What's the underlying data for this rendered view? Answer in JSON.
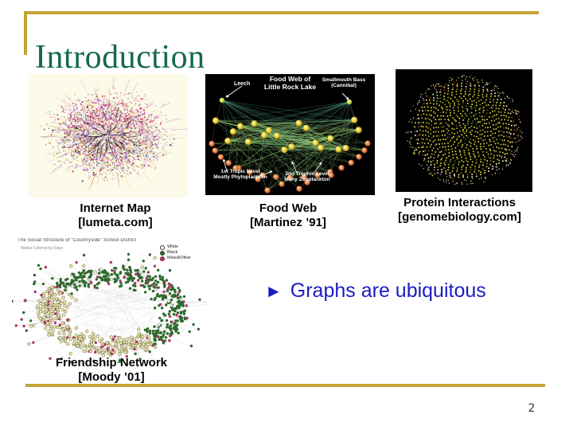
{
  "slide": {
    "title": "Introduction",
    "page_number": "2",
    "bullet": {
      "marker": "►",
      "text": "Graphs are ubiquitous"
    },
    "colors": {
      "accent_gold": "#C4A338",
      "title_green": "#14694A",
      "bullet_blue": "#1C1CC4"
    }
  },
  "figures": {
    "internet_map": {
      "caption": [
        "Internet Map",
        "[lumeta.com]"
      ],
      "background": "#FCFAE8",
      "palette": [
        "#C93BA8",
        "#D4473F",
        "#E06A3C",
        "#B7BD55",
        "#CFDB7A",
        "#92AEDC",
        "#8A5FC8",
        "#9939BB",
        "#DD8FC5",
        "#C9B84C",
        "#D850A0",
        "#5F82C8",
        "#3A2A2A"
      ]
    },
    "food_web": {
      "caption": [
        "Food Web",
        "[Martinez ’91]"
      ],
      "labels": {
        "title_line1": "Food Web of",
        "title_line2": "Little Rock Lake",
        "leech": "Leech",
        "bass_line1": "Smallmouth Bass",
        "bass_line2": "(Cannibal)",
        "level1_line1": "1st Tropic Level",
        "level1_line2": "Mostly Phytoplankton",
        "level2_line1": "2nd Trophic Level",
        "level2_line2": "Many Zooplankton"
      },
      "node_colors": {
        "upper": "#F2E24A",
        "lower": "#E8834C",
        "edge": "#7FD2A0"
      }
    },
    "protein": {
      "caption": [
        "Protein Interactions",
        "[genomebiology.com]"
      ],
      "dot_colors": [
        "#E8E23A",
        "#DED631",
        "#CFC52B",
        "#A8B42E",
        "#6F8A22",
        "#46611C",
        "#F0F0DC",
        "#9C4018"
      ]
    },
    "friendship": {
      "caption": [
        "Friendship Network",
        "[Moody ’01]"
      ],
      "title": "The Social Structure of “Countryside” School District",
      "subtitle": "Nodes Colored by Race",
      "legend": [
        {
          "label": "White",
          "color": "#FFFFFF"
        },
        {
          "label": "Black",
          "color": "#2D6B2D"
        },
        {
          "label": "Mixed/Other",
          "color": "#B03468"
        }
      ],
      "node_colors": {
        "yellow": "#EFE7A2",
        "green": "#2D6B2D",
        "magenta": "#B03468"
      }
    }
  }
}
